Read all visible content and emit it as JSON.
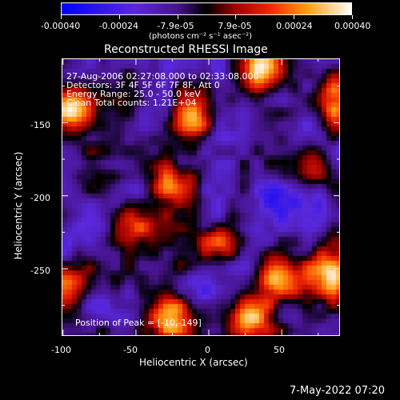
{
  "colorbar": {
    "tick_labels": [
      "-0.00040",
      "-0.00024",
      "-7.9e-05",
      "7.9e-05",
      "0.00024",
      "0.00040"
    ],
    "units": "(photons cm⁻² s⁻¹ asec⁻²)"
  },
  "plot": {
    "title": "Reconstructed RHESSI Image",
    "info_lines": [
      "27-Aug-2006 02:27:08.000 to 02:33:08.000",
      "Detectors: 3F 4F 5F 6F 7F 8F, Att 0",
      "Energy Range: 25.0 - 50.0 keV",
      "Clean     Total counts: 1.21E+04"
    ],
    "peak_text": "Position of Peak = [-10,-149]",
    "xlabel": "Heliocentric X (arcsec)",
    "ylabel": "Heliocentric Y (arcsec)",
    "x_ticks": [
      "-100",
      "-50",
      "0",
      "50"
    ],
    "y_ticks": [
      "-150",
      "-200",
      "-250"
    ]
  },
  "footer": {
    "timestamp": "7-May-2022 07:20"
  },
  "chart_data": {
    "type": "heatmap",
    "title": "Reconstructed RHESSI Image",
    "xlabel": "Heliocentric X (arcsec)",
    "ylabel": "Heliocentric Y (arcsec)",
    "xlim": [
      -101,
      90
    ],
    "ylim": [
      -296,
      -106
    ],
    "color_range": [
      -0.0004,
      0.0004
    ],
    "peak": [
      -10,
      -149
    ],
    "hot_spots": [
      {
        "x": -10,
        "y": -149,
        "level": 1.0
      },
      {
        "x": -95,
        "y": -140,
        "level": 0.95
      },
      {
        "x": -28,
        "y": -283,
        "level": 0.9
      },
      {
        "x": 35,
        "y": -112,
        "level": 0.9
      },
      {
        "x": 30,
        "y": -282,
        "level": 0.8
      },
      {
        "x": 48,
        "y": -258,
        "level": 0.75
      },
      {
        "x": 82,
        "y": -255,
        "level": 0.75
      },
      {
        "x": -98,
        "y": -262,
        "level": 0.65
      },
      {
        "x": 72,
        "y": -182,
        "level": 0.6
      },
      {
        "x": 85,
        "y": -135,
        "level": 0.55
      },
      {
        "x": -52,
        "y": -218,
        "level": 0.55
      },
      {
        "x": -30,
        "y": -192,
        "level": 0.5
      },
      {
        "x": 10,
        "y": -232,
        "level": 0.5
      }
    ],
    "cold_spots": [
      {
        "x": 5,
        "y": -152
      },
      {
        "x": 42,
        "y": -200
      },
      {
        "x": -45,
        "y": -198
      },
      {
        "x": -80,
        "y": -215
      },
      {
        "x": 70,
        "y": -210
      },
      {
        "x": -10,
        "y": -265
      }
    ]
  }
}
